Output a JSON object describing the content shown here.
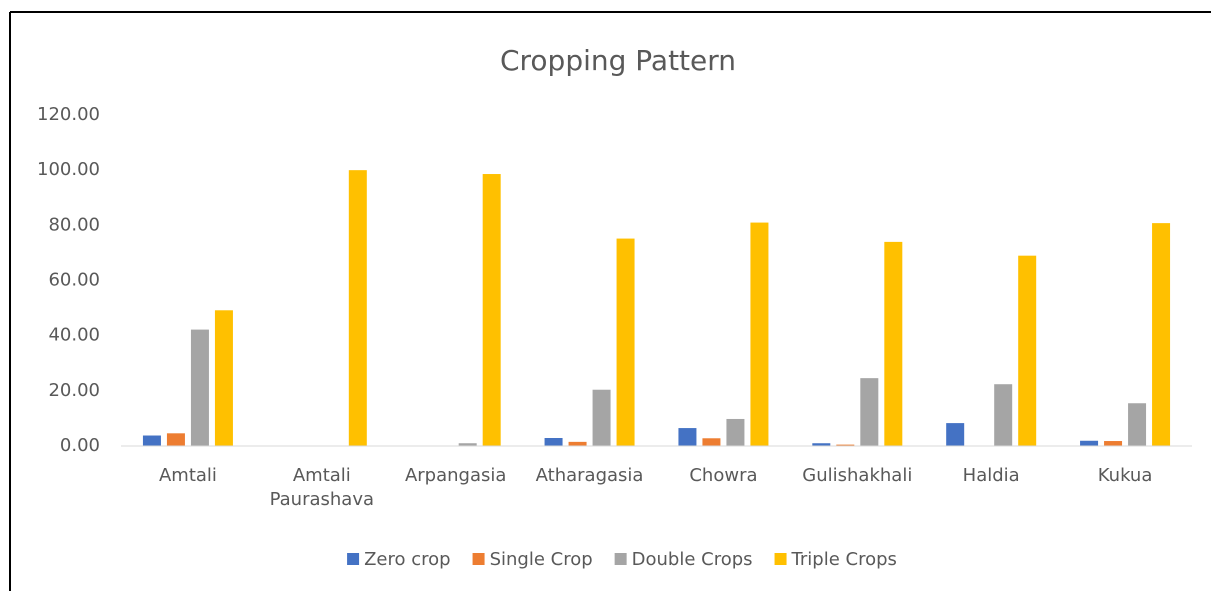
{
  "chart_data": {
    "type": "bar",
    "title": "Cropping Pattern",
    "categories": [
      "Amtali",
      "Amtali Paurashava",
      "Arpangasia",
      "Atharagasia",
      "Chowra",
      "Gulishakhali",
      "Haldia",
      "Kukua"
    ],
    "series": [
      {
        "name": "Zero crop",
        "color": "#4472c4",
        "values": [
          3.8,
          0,
          0,
          2.9,
          6.5,
          1.0,
          8.3,
          1.9
        ]
      },
      {
        "name": "Single Crop",
        "color": "#ed7d31",
        "values": [
          4.6,
          0,
          0,
          1.5,
          2.8,
          0.5,
          0,
          1.8
        ]
      },
      {
        "name": "Double Crops",
        "color": "#a5a5a5",
        "values": [
          42.2,
          0,
          1.0,
          20.4,
          9.8,
          24.6,
          22.4,
          15.5
        ]
      },
      {
        "name": "Triple Crops",
        "color": "#ffc000",
        "values": [
          49.2,
          100,
          98.6,
          75.2,
          81.0,
          74.0,
          69.0,
          80.8
        ]
      }
    ],
    "ylim": [
      0,
      120
    ],
    "yticks": [
      {
        "value": 0,
        "label": "0.00"
      },
      {
        "value": 20,
        "label": "20.00"
      },
      {
        "value": 40,
        "label": "40.00"
      },
      {
        "value": 60,
        "label": "60.00"
      },
      {
        "value": 80,
        "label": "80.00"
      },
      {
        "value": 100,
        "label": "100.00"
      },
      {
        "value": 120,
        "label": "120.00"
      }
    ],
    "grid": false,
    "legend": "bottom"
  }
}
